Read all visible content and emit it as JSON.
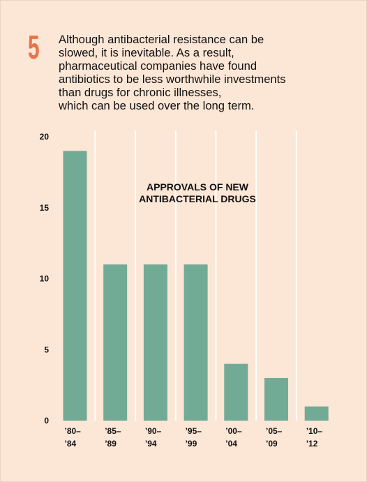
{
  "header": {
    "number": "5",
    "text_lines": [
      "Although antibacterial resistance can be",
      "slowed, it is inevitable. As a result,",
      "pharmaceutical companies have found",
      "antibiotics to be less worthwhile investments",
      "than drugs for chronic illnesses,",
      "which can be used over the long term."
    ]
  },
  "colors": {
    "background": "#fce6d6",
    "bar": "#72ab95",
    "number": "#e8734a",
    "gridline": "#ffffff"
  },
  "chart_data": {
    "type": "bar",
    "title_lines": [
      "APPROVALS OF NEW",
      "ANTIBACTERIAL DRUGS"
    ],
    "categories": [
      [
        "’80–",
        "’84"
      ],
      [
        "’85–",
        "’89"
      ],
      [
        "’90–",
        "’94"
      ],
      [
        "’95–",
        "’99"
      ],
      [
        "’00–",
        "’04"
      ],
      [
        "’05–",
        "’09"
      ],
      [
        "’10–",
        "’12"
      ]
    ],
    "values": [
      19,
      11,
      11,
      11,
      4,
      3,
      1
    ],
    "yticks": [
      "0",
      "5",
      "10",
      "15",
      "20"
    ],
    "ylim": [
      0,
      20
    ],
    "grid": "vertical separators"
  }
}
